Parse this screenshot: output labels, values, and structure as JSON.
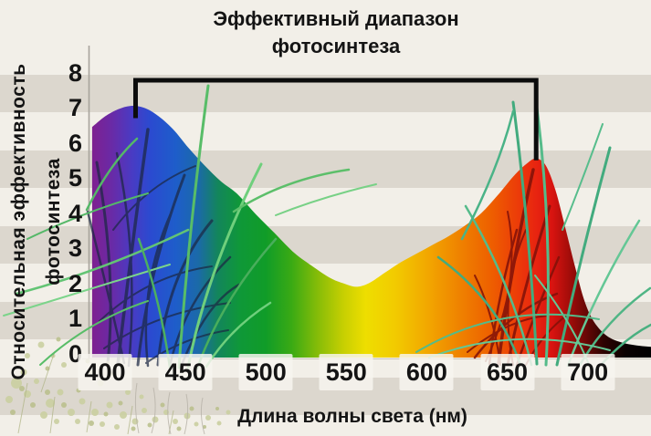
{
  "title": {
    "line1": "Эффективный диапазон",
    "line2": "фотосинтеза"
  },
  "y_axis": {
    "label_line1": "Относительная эффективность",
    "label_line2": "фотосинтеза"
  },
  "x_axis": {
    "title": "Длина волны света (нм)"
  },
  "colors": {
    "stripe_light": "#f2efe8",
    "stripe_dark": "#dcd7ce",
    "text": "#141414",
    "bracket": "#0c0c0c",
    "axis_line": "#a7a39c",
    "left_peak_fill": "#2b4ad0",
    "right_peak_fill": "#e82410",
    "trough_fill": "#eede00"
  },
  "bracket": {
    "from_nm": 419,
    "to_nm": 668,
    "top_value": 7.78,
    "left_end_value": 6.7,
    "right_end_value": 5.5
  },
  "chart_data": {
    "type": "area",
    "title": "Эффективный диапазон фотосинтеза",
    "xlabel": "Длина волны света (нм)",
    "ylabel": "Относительная эффективность фотосинтеза",
    "x_unit": "нм",
    "xlim": [
      392,
      740
    ],
    "ylim": [
      0,
      8
    ],
    "x_ticks": [
      400,
      450,
      500,
      550,
      600,
      650,
      700
    ],
    "y_ticks": [
      0,
      1,
      2,
      3,
      4,
      5,
      6,
      7,
      8
    ],
    "grid": false,
    "legend": false,
    "fill": "visible-light-spectrum-gradient",
    "effective_range_nm": [
      419,
      668
    ],
    "peaks": [
      {
        "nm": 418,
        "value": 7.05,
        "color_region": "синий"
      },
      {
        "nm": 668,
        "value": 5.55,
        "color_region": "красный"
      }
    ],
    "trough": {
      "nm": 556,
      "value": 1.9,
      "color_region": "жёлто-зелёный"
    },
    "series": [
      {
        "name": "Относительная эффективность фотосинтеза",
        "points": [
          [
            392,
            6.45
          ],
          [
            400,
            6.75
          ],
          [
            408,
            6.95
          ],
          [
            416,
            7.05
          ],
          [
            424,
            7.0
          ],
          [
            432,
            6.8
          ],
          [
            442,
            6.4
          ],
          [
            452,
            5.85
          ],
          [
            462,
            5.35
          ],
          [
            472,
            4.9
          ],
          [
            482,
            4.55
          ],
          [
            494,
            3.95
          ],
          [
            506,
            3.4
          ],
          [
            518,
            2.85
          ],
          [
            530,
            2.45
          ],
          [
            540,
            2.15
          ],
          [
            548,
            2.0
          ],
          [
            556,
            1.9
          ],
          [
            564,
            2.0
          ],
          [
            574,
            2.3
          ],
          [
            584,
            2.6
          ],
          [
            594,
            2.85
          ],
          [
            604,
            3.1
          ],
          [
            614,
            3.35
          ],
          [
            624,
            3.65
          ],
          [
            634,
            4.0
          ],
          [
            644,
            4.5
          ],
          [
            654,
            5.05
          ],
          [
            662,
            5.4
          ],
          [
            668,
            5.55
          ],
          [
            674,
            5.35
          ],
          [
            680,
            4.65
          ],
          [
            686,
            3.6
          ],
          [
            692,
            2.5
          ],
          [
            698,
            1.5
          ],
          [
            704,
            0.9
          ],
          [
            712,
            0.5
          ],
          [
            722,
            0.3
          ],
          [
            736,
            0.2
          ],
          [
            750,
            0.18
          ]
        ]
      }
    ],
    "spectrum_stops": [
      {
        "nm": 392,
        "color": "#7e2090"
      },
      {
        "nm": 404,
        "color": "#6a2aa6"
      },
      {
        "nm": 416,
        "color": "#4b3ac2"
      },
      {
        "nm": 428,
        "color": "#2b4ad0"
      },
      {
        "nm": 444,
        "color": "#1e5dca"
      },
      {
        "nm": 458,
        "color": "#1b6aa8"
      },
      {
        "nm": 470,
        "color": "#13855c"
      },
      {
        "nm": 484,
        "color": "#0f9838"
      },
      {
        "nm": 500,
        "color": "#109c28"
      },
      {
        "nm": 516,
        "color": "#3aaa14"
      },
      {
        "nm": 532,
        "color": "#85bc08"
      },
      {
        "nm": 548,
        "color": "#c6cf02"
      },
      {
        "nm": 562,
        "color": "#eede00"
      },
      {
        "nm": 580,
        "color": "#f2cb00"
      },
      {
        "nm": 600,
        "color": "#f2a800"
      },
      {
        "nm": 620,
        "color": "#ef8300"
      },
      {
        "nm": 640,
        "color": "#ee5f00"
      },
      {
        "nm": 655,
        "color": "#ec3f08"
      },
      {
        "nm": 668,
        "color": "#e82410"
      },
      {
        "nm": 678,
        "color": "#d81410"
      },
      {
        "nm": 688,
        "color": "#a60d0a"
      },
      {
        "nm": 698,
        "color": "#6e0806"
      },
      {
        "nm": 710,
        "color": "#2d0302"
      },
      {
        "nm": 724,
        "color": "#0a0101"
      },
      {
        "nm": 740,
        "color": "#000000"
      }
    ]
  }
}
